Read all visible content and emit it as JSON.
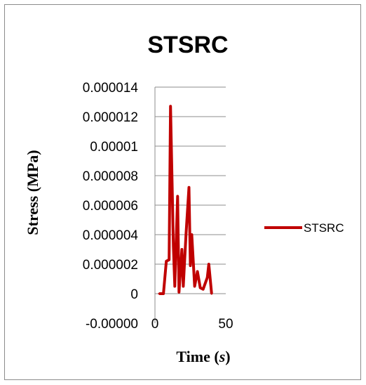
{
  "chart_data": {
    "type": "line",
    "title": "STSRC",
    "xlabel_main": "Time (",
    "xlabel_unit": "s",
    "xlabel_close": ")",
    "ylabel": "Stress (MPa)",
    "xlim": [
      0,
      50
    ],
    "ylim": [
      0,
      1.4e-05
    ],
    "x_ticks": [
      {
        "value": 0,
        "label": "0"
      },
      {
        "value": 50,
        "label": "50"
      }
    ],
    "y_ticks": [
      {
        "value": 1.4e-05,
        "label": "0.000014"
      },
      {
        "value": 1.2e-05,
        "label": "0.000012"
      },
      {
        "value": 1e-05,
        "label": "0.00001"
      },
      {
        "value": 8e-06,
        "label": "0.000008"
      },
      {
        "value": 6e-06,
        "label": "0.000006"
      },
      {
        "value": 4e-06,
        "label": "0.000004"
      },
      {
        "value": 2e-06,
        "label": "0.000002"
      },
      {
        "value": 0,
        "label": "0"
      },
      {
        "value": -2e-06,
        "label": "-0.00000"
      }
    ],
    "grid": "horizontal",
    "legend_position": "right",
    "series": [
      {
        "name": "STSRC",
        "color": "#c00000",
        "x": [
          3,
          6,
          8,
          10,
          11,
          13,
          14,
          16,
          17,
          19,
          20,
          22,
          24,
          25,
          26,
          28,
          30,
          32,
          34,
          37,
          38,
          40
        ],
        "y": [
          0,
          0,
          2.2e-06,
          2.3e-06,
          1.27e-05,
          3.2e-06,
          5e-07,
          6.6e-06,
          1e-07,
          3e-06,
          5e-07,
          4.1e-06,
          7.2e-06,
          1.9e-06,
          4e-06,
          5e-07,
          1.5e-06,
          4e-07,
          3e-07,
          1.1e-06,
          2e-06,
          0
        ]
      }
    ]
  }
}
